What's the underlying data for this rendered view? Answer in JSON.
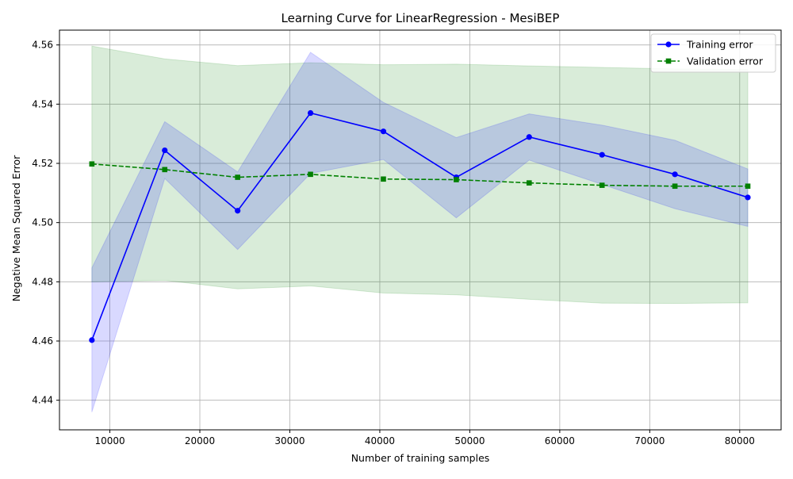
{
  "chart_data": {
    "type": "line",
    "title": "Learning Curve for LinearRegression - MesiBEP",
    "xlabel": "Number of training samples",
    "ylabel": "Negative Mean Squared Error",
    "xlim": [
      4400,
      84600
    ],
    "ylim": [
      4.43,
      4.565
    ],
    "x_ticks": [
      10000,
      20000,
      30000,
      40000,
      50000,
      60000,
      70000,
      80000
    ],
    "x_tick_labels": [
      "10000",
      "20000",
      "30000",
      "40000",
      "50000",
      "60000",
      "70000",
      "80000"
    ],
    "y_ticks": [
      4.44,
      4.46,
      4.48,
      4.5,
      4.52,
      4.54,
      4.56
    ],
    "y_tick_labels": [
      "4.44",
      "4.46",
      "4.48",
      "4.50",
      "4.52",
      "4.54",
      "4.56"
    ],
    "grid": true,
    "legend_position": "top-right",
    "x": [
      8000,
      16100,
      24200,
      32300,
      40400,
      48500,
      56600,
      64700,
      72800,
      80900
    ],
    "series": [
      {
        "name": "Training error",
        "color": "#0000ff",
        "fill_color": "#0000ff",
        "linestyle": "solid",
        "marker": "circle",
        "values": [
          4.4603,
          4.5244,
          4.504,
          4.537,
          4.5308,
          4.5153,
          4.5289,
          4.5229,
          4.5163,
          4.5085
        ],
        "band_upper": [
          4.4847,
          4.5341,
          4.5171,
          4.5575,
          4.5406,
          4.5287,
          4.5367,
          4.5329,
          4.5278,
          4.5181
        ],
        "band_lower": [
          4.436,
          4.5149,
          4.4909,
          4.5166,
          4.5213,
          4.5016,
          4.5211,
          4.5129,
          4.5047,
          4.4987
        ]
      },
      {
        "name": "Validation error",
        "color": "#008000",
        "fill_color": "#008000",
        "linestyle": "dashed",
        "marker": "square",
        "values": [
          4.5198,
          4.5179,
          4.5153,
          4.5163,
          4.5147,
          4.5145,
          4.5134,
          4.5126,
          4.5123,
          4.5123
        ],
        "band_upper": [
          4.5596,
          4.5553,
          4.553,
          4.554,
          4.5533,
          4.5535,
          4.5529,
          4.5524,
          4.5519,
          4.5517
        ],
        "band_lower": [
          4.48,
          4.4805,
          4.4776,
          4.4786,
          4.4762,
          4.4756,
          4.4741,
          4.4728,
          4.4727,
          4.4729
        ]
      }
    ]
  }
}
